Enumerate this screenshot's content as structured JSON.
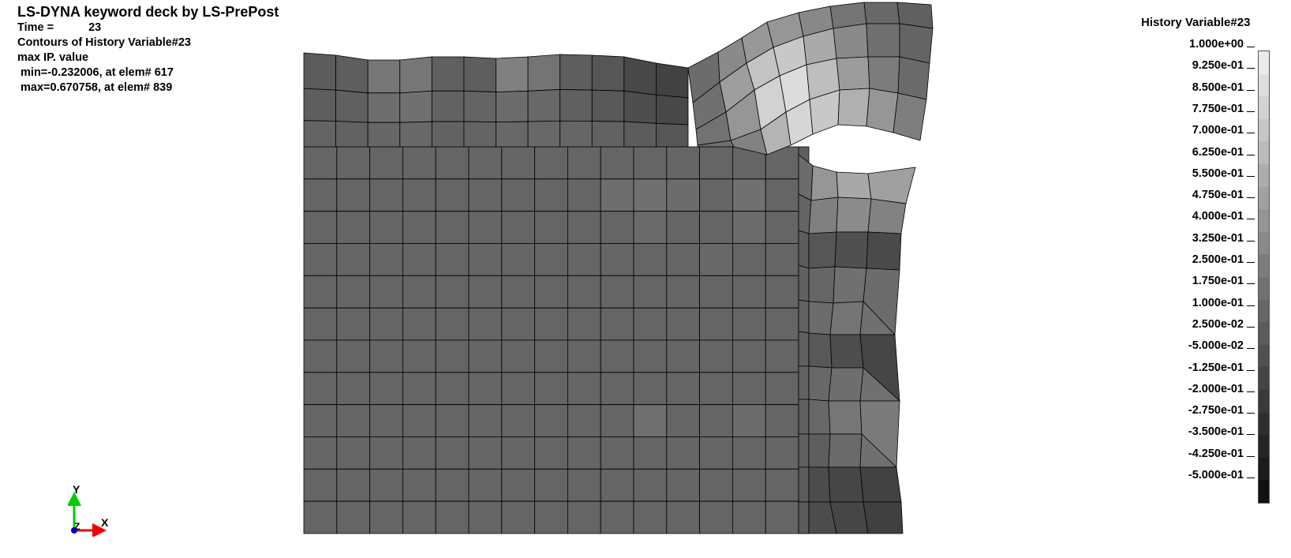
{
  "header": {
    "title": "LS-DYNA keyword deck by LS-PrePost",
    "time_label": "Time =",
    "time_value": "23",
    "contour_label": "Contours of History Variable#23",
    "ip_label": "max IP. value",
    "min_text": " min=-0.232006, at elem# 617",
    "max_text": " max=0.670758, at elem# 839"
  },
  "triad": {
    "y_label": "Y",
    "z_label": "Z",
    "x_label": "X",
    "y_color": "#00cc00",
    "x_color": "#ee0000",
    "z_color": "#0000cc"
  },
  "legend": {
    "title": "History Variable#23",
    "labels": [
      "1.000e+00",
      "9.250e-01",
      "8.500e-01",
      "7.750e-01",
      "7.000e-01",
      "6.250e-01",
      "5.500e-01",
      "4.750e-01",
      "4.000e-01",
      "3.250e-01",
      "2.500e-01",
      "1.750e-01",
      "1.000e-01",
      "2.500e-02",
      "-5.000e-02",
      "-1.250e-01",
      "-2.000e-01",
      "-2.750e-01",
      "-3.500e-01",
      "-4.250e-01",
      "-5.000e-01"
    ],
    "colors": [
      "#ebebeb",
      "#dedede",
      "#d2d2d2",
      "#c6c6c6",
      "#bababa",
      "#adadad",
      "#a1a1a1",
      "#959595",
      "#898989",
      "#7d7d7d",
      "#717171",
      "#666666",
      "#5b5b5b",
      "#505050",
      "#454545",
      "#3a3a3a",
      "#2f2f2f",
      "#252525",
      "#1b1b1b",
      "#111111"
    ]
  },
  "mesh": {
    "base_color": "#656565",
    "line_color": "#000000"
  }
}
